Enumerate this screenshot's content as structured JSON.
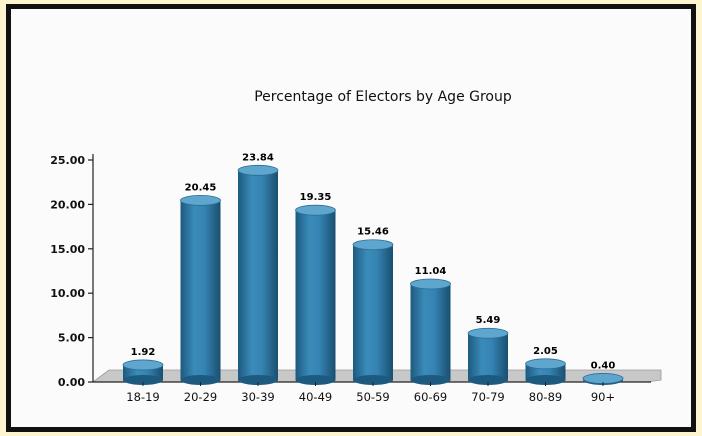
{
  "chart_data": {
    "type": "bar",
    "title": "Percentage of Electors by Age Group",
    "xlabel": "",
    "ylabel": "",
    "categories": [
      "18-19",
      "20-29",
      "30-39",
      "40-49",
      "50-59",
      "60-69",
      "70-79",
      "80-89",
      "90+"
    ],
    "values": [
      1.92,
      20.45,
      23.84,
      19.35,
      15.46,
      11.04,
      5.49,
      2.05,
      0.4
    ],
    "value_labels": [
      "1.92",
      "20.45",
      "23.84",
      "19.35",
      "15.46",
      "11.04",
      "5.49",
      "2.05",
      "0.40"
    ],
    "ylim": [
      0,
      25
    ],
    "yticks": [
      "0.00",
      "5.00",
      "10.00",
      "15.00",
      "20.00",
      "25.00"
    ],
    "grid": false,
    "legend": "none",
    "bar_style": "3d-cylinder",
    "colors": {
      "bar": "#2f7aa6",
      "bar_top": "#5fa6cf",
      "floor": "#c8c8c8"
    }
  }
}
